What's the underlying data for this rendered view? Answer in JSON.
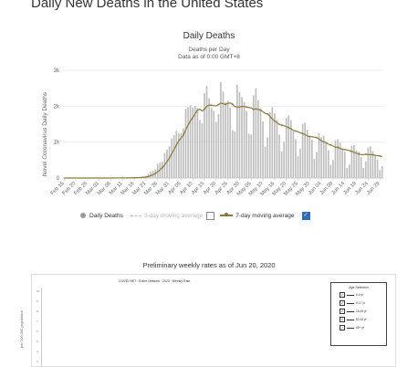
{
  "page": {
    "title": "Daily New Deaths in the United States"
  },
  "legend": {
    "daily_deaths": "Daily Deaths",
    "moving_avg_3": "3-day moving average",
    "moving_avg_7": "7-day moving average",
    "check_mark": "✓"
  },
  "weekly": {
    "title": "Preliminary weekly rates as of Jun 20, 2020",
    "embed_header": "COVID-NET : Entire Network : 2020 : Weekly Rate",
    "ylabel": "per 100,000 population",
    "yticks": [
      "10",
      "9",
      "8",
      "7",
      "6",
      "5",
      "4",
      "3"
    ],
    "age_selection": {
      "title": "Age Selection",
      "items": [
        "0-4 yr",
        "5-17 yr",
        "18-49 yr",
        "50-64 yr",
        "65+ yr"
      ]
    }
  },
  "colors": {
    "bars": "#bdbdbd",
    "avg_line": "#8b7a3a",
    "grid": "#e6e6e6",
    "checkbox": "#2f6fb5"
  },
  "chart_data": {
    "type": "bar",
    "title": "Daily Deaths",
    "subtitle": "Deaths per Day",
    "subtitle2": "Data as of 0:00 GMT+8",
    "ylabel": "Novel Coronavirus Daily Deaths",
    "ylim": [
      0,
      3000
    ],
    "yticks": [
      0,
      1000,
      2000,
      3000
    ],
    "ytick_labels": [
      "0",
      "1k",
      "2k",
      "3k"
    ],
    "grid": true,
    "x_tick_labels": [
      "Feb 15",
      "Feb 20",
      "Feb 25",
      "Mar 01",
      "Mar 06",
      "Mar 11",
      "Mar 16",
      "Mar 21",
      "Mar 26",
      "Mar 31",
      "Apr 05",
      "Apr 10",
      "Apr 15",
      "Apr 20",
      "Apr 25",
      "Apr 30",
      "May 05",
      "May 10",
      "May 15",
      "May 20",
      "May 25",
      "May 30",
      "Jun 04",
      "Jun 09",
      "Jun 14",
      "Jun 19",
      "Jun 24",
      "Jun 29"
    ],
    "x_start": "Feb 15",
    "values": [
      0,
      0,
      0,
      0,
      0,
      0,
      0,
      0,
      0,
      0,
      0,
      0,
      0,
      0,
      0,
      1,
      0,
      1,
      0,
      1,
      1,
      2,
      2,
      5,
      3,
      5,
      6,
      5,
      8,
      11,
      10,
      22,
      19,
      24,
      47,
      63,
      117,
      172,
      201,
      237,
      393,
      436,
      455,
      694,
      789,
      882,
      1100,
      1196,
      1316,
      1251,
      1245,
      1383,
      1925,
      1971,
      2026,
      1962,
      2006,
      1946,
      1616,
      1524,
      2361,
      2564,
      2220,
      1956,
      1870,
      1562,
      1777,
      2672,
      2407,
      2112,
      2147,
      1964,
      1322,
      1298,
      2594,
      2390,
      2253,
      2113,
      1866,
      1231,
      1211,
      2305,
      2502,
      2162,
      1942,
      1578,
      871,
      1129,
      1837,
      1972,
      1802,
      1623,
      1209,
      742,
      1010,
      1674,
      1739,
      1612,
      1297,
      1081,
      607,
      818,
      1503,
      1539,
      1345,
      1180,
      1063,
      530,
      720,
      1250,
      1140,
      1182,
      1008,
      776,
      371,
      502,
      1048,
      1082,
      988,
      830,
      734,
      280,
      375,
      899,
      915,
      774,
      721,
      585,
      280,
      460,
      849,
      888,
      752,
      627,
      515,
      220,
      330
    ]
  },
  "chart_data_moving_avg": {
    "type": "line",
    "name": "7-day moving average",
    "window": 7
  }
}
